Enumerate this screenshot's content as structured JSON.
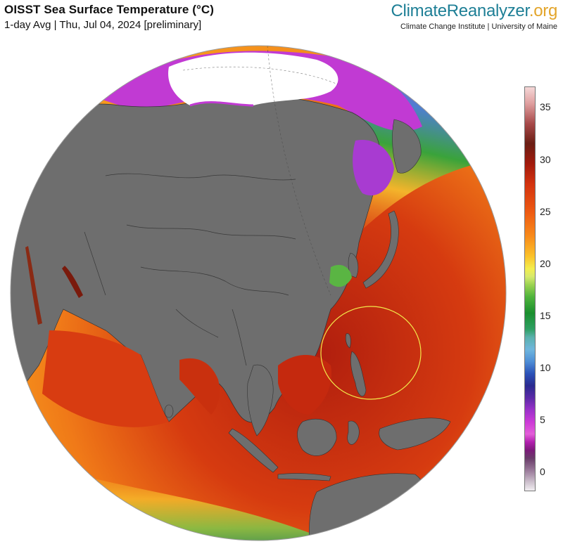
{
  "header": {
    "title": "OISST Sea Surface Temperature (°C)",
    "subtitle": "1-day Avg | Thu, Jul 04, 2024 [preliminary]"
  },
  "brand": {
    "name_part1": "ClimateReanalyzer",
    "name_part2": ".org",
    "institute": "Climate Change Institute | University of Maine",
    "color_primary": "#1e7f96",
    "color_accent": "#e3a52b"
  },
  "colorbar": {
    "ticks": [
      "35",
      "30",
      "25",
      "20",
      "15",
      "10",
      "5",
      "0"
    ],
    "unit": "°C"
  },
  "map": {
    "land_color": "#6e6e6e",
    "ice_color": "#ffffff",
    "ocean_hot_color": "#c52a0f",
    "highlight_circle_color": "#f2e94a"
  }
}
